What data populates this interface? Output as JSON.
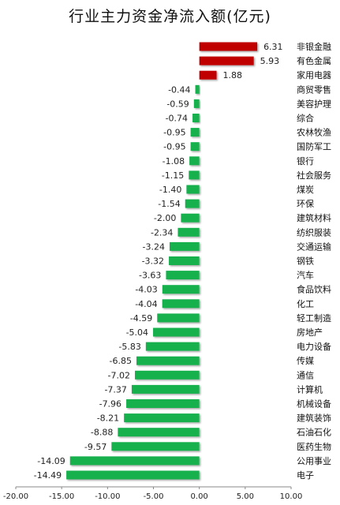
{
  "chart_data": {
    "type": "bar",
    "orientation": "horizontal",
    "title": "行业主力资金净流入额(亿元)",
    "xlim": [
      -20,
      10
    ],
    "x_ticks": [
      "-20.00",
      "-15.00",
      "-10.00",
      "-5.00",
      "0.00",
      "5.00",
      "10.00"
    ],
    "x_tick_values": [
      -20,
      -15,
      -10,
      -5,
      0,
      5,
      10
    ],
    "grid": false,
    "positive_color": "#c00000",
    "negative_color": "#17b04e",
    "categories": [
      "非银金融",
      "有色金属",
      "家用电器",
      "商贸零售",
      "美容护理",
      "综合",
      "农林牧渔",
      "国防军工",
      "银行",
      "社会服务",
      "煤炭",
      "环保",
      "建筑材料",
      "纺织服装",
      "交通运输",
      "钢铁",
      "汽车",
      "食品饮料",
      "化工",
      "轻工制造",
      "房地产",
      "电力设备",
      "传媒",
      "通信",
      "计算机",
      "机械设备",
      "建筑装饰",
      "石油石化",
      "医药生物",
      "公用事业",
      "电子"
    ],
    "values": [
      6.31,
      5.93,
      1.88,
      -0.44,
      -0.59,
      -0.74,
      -0.95,
      -0.95,
      -1.08,
      -1.15,
      -1.4,
      -1.54,
      -2.0,
      -2.34,
      -3.24,
      -3.32,
      -3.63,
      -4.03,
      -4.04,
      -4.59,
      -5.04,
      -5.83,
      -6.85,
      -7.02,
      -7.37,
      -7.96,
      -8.21,
      -8.88,
      -9.57,
      -14.09,
      -14.49
    ],
    "value_labels": [
      "6.31",
      "5.93",
      "1.88",
      "-0.44",
      "-0.59",
      "-0.74",
      "-0.95",
      "-0.95",
      "-1.08",
      "-1.15",
      "-1.40",
      "-1.54",
      "-2.00",
      "-2.34",
      "-3.24",
      "-3.32",
      "-3.63",
      "-4.03",
      "-4.04",
      "-4.59",
      "-5.04",
      "-5.83",
      "-6.85",
      "-7.02",
      "-7.37",
      "-7.96",
      "-8.21",
      "-8.88",
      "-9.57",
      "-14.09",
      "-14.49"
    ]
  }
}
